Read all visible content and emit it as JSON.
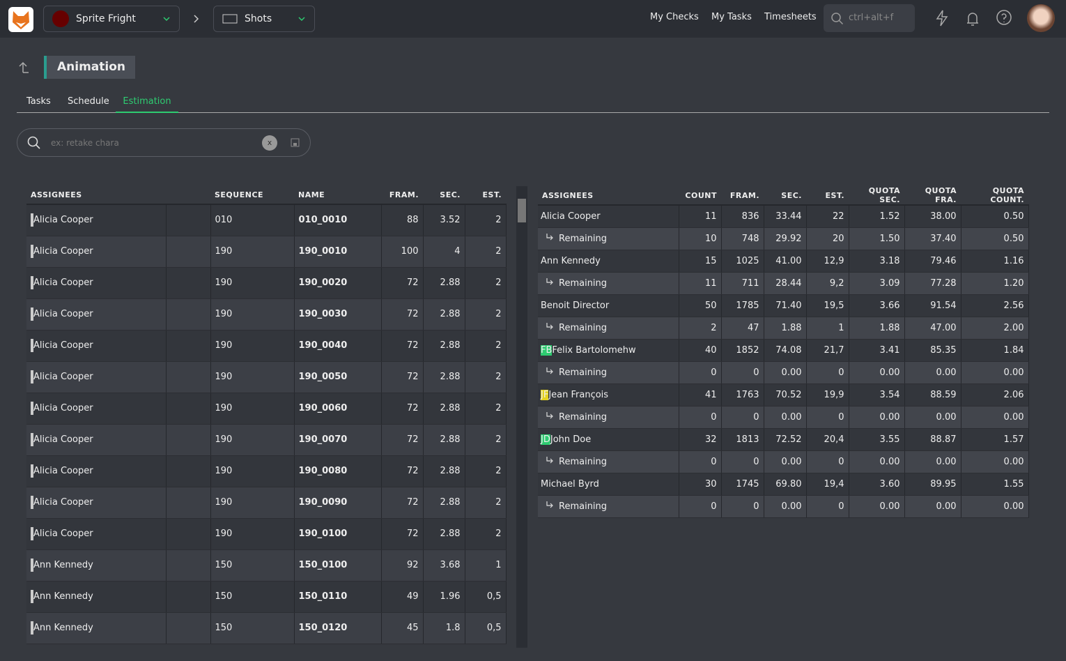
{
  "topbar": {
    "production": "Sprite Fright",
    "section": "Shots",
    "links": [
      "My Checks",
      "My Tasks",
      "Timesheets"
    ],
    "search_placeholder": "ctrl+alt+f"
  },
  "header": {
    "title": "Animation",
    "tabs": [
      "Tasks",
      "Schedule",
      "Estimation"
    ]
  },
  "filter": {
    "placeholder": "ex: retake chara",
    "clear": "x"
  },
  "shots_table": {
    "headers": [
      "ASSIGNEES",
      "SEQUENCE",
      "NAME",
      "FRAM.",
      "SEC.",
      "EST."
    ],
    "rows": [
      [
        "Alicia Cooper",
        "010",
        "010_0010",
        "88",
        "3.52",
        "2"
      ],
      [
        "Alicia Cooper",
        "190",
        "190_0010",
        "100",
        "4",
        "2"
      ],
      [
        "Alicia Cooper",
        "190",
        "190_0020",
        "72",
        "2.88",
        "2"
      ],
      [
        "Alicia Cooper",
        "190",
        "190_0030",
        "72",
        "2.88",
        "2"
      ],
      [
        "Alicia Cooper",
        "190",
        "190_0040",
        "72",
        "2.88",
        "2"
      ],
      [
        "Alicia Cooper",
        "190",
        "190_0050",
        "72",
        "2.88",
        "2"
      ],
      [
        "Alicia Cooper",
        "190",
        "190_0060",
        "72",
        "2.88",
        "2"
      ],
      [
        "Alicia Cooper",
        "190",
        "190_0070",
        "72",
        "2.88",
        "2"
      ],
      [
        "Alicia Cooper",
        "190",
        "190_0080",
        "72",
        "2.88",
        "2"
      ],
      [
        "Alicia Cooper",
        "190",
        "190_0090",
        "72",
        "2.88",
        "2"
      ],
      [
        "Alicia Cooper",
        "190",
        "190_0100",
        "72",
        "2.88",
        "2"
      ],
      [
        "Ann Kennedy",
        "150",
        "150_0100",
        "92",
        "3.68",
        "1"
      ],
      [
        "Ann Kennedy",
        "150",
        "150_0110",
        "49",
        "1.96",
        "0,5"
      ],
      [
        "Ann Kennedy",
        "150",
        "150_0120",
        "45",
        "1.8",
        "0,5"
      ]
    ]
  },
  "people_table": {
    "headers": [
      "ASSIGNEES",
      "COUNT",
      "FRAM.",
      "SEC.",
      "EST.",
      "QUOTA SEC.",
      "QUOTA FRA.",
      "QUOTA COUNT."
    ],
    "rows": [
      {
        "name": "Alicia Cooper",
        "cells": [
          "11",
          "836",
          "33.44",
          "22",
          "1.52",
          "38.00",
          "0.50"
        ]
      },
      {
        "name": "Remaining",
        "cells": [
          "10",
          "748",
          "29.92",
          "20",
          "1.50",
          "37.40",
          "0.50"
        ]
      },
      {
        "name": "Ann Kennedy",
        "cells": [
          "15",
          "1025",
          "41.00",
          "12,9",
          "3.18",
          "79.46",
          "1.16"
        ]
      },
      {
        "name": "Remaining",
        "cells": [
          "11",
          "711",
          "28.44",
          "9,2",
          "3.09",
          "77.28",
          "1.20"
        ]
      },
      {
        "name": "Benoit Director",
        "cells": [
          "50",
          "1785",
          "71.40",
          "19,5",
          "3.66",
          "91.54",
          "2.56"
        ]
      },
      {
        "name": "Remaining",
        "cells": [
          "2",
          "47",
          "1.88",
          "1",
          "1.88",
          "47.00",
          "2.00"
        ]
      },
      {
        "name": "Felix Bartolomehw",
        "initials": "FB",
        "cells": [
          "40",
          "1852",
          "74.08",
          "21,7",
          "3.41",
          "85.35",
          "1.84"
        ]
      },
      {
        "name": "Remaining",
        "cells": [
          "0",
          "0",
          "0.00",
          "0",
          "0.00",
          "0.00",
          "0.00"
        ]
      },
      {
        "name": "Jean François",
        "initials": "JF",
        "cells": [
          "41",
          "1763",
          "70.52",
          "19,9",
          "3.54",
          "88.59",
          "2.06"
        ]
      },
      {
        "name": "Remaining",
        "cells": [
          "0",
          "0",
          "0.00",
          "0",
          "0.00",
          "0.00",
          "0.00"
        ]
      },
      {
        "name": "John Doe",
        "initials": "JD",
        "cells": [
          "32",
          "1813",
          "72.52",
          "20,4",
          "3.55",
          "88.87",
          "1.57"
        ]
      },
      {
        "name": "Remaining",
        "cells": [
          "0",
          "0",
          "0.00",
          "0",
          "0.00",
          "0.00",
          "0.00"
        ]
      },
      {
        "name": "Michael Byrd",
        "cells": [
          "30",
          "1745",
          "69.80",
          "19,4",
          "3.60",
          "89.95",
          "1.55"
        ]
      },
      {
        "name": "Remaining",
        "cells": [
          "0",
          "0",
          "0.00",
          "0",
          "0.00",
          "0.00",
          "0.00"
        ]
      }
    ]
  }
}
